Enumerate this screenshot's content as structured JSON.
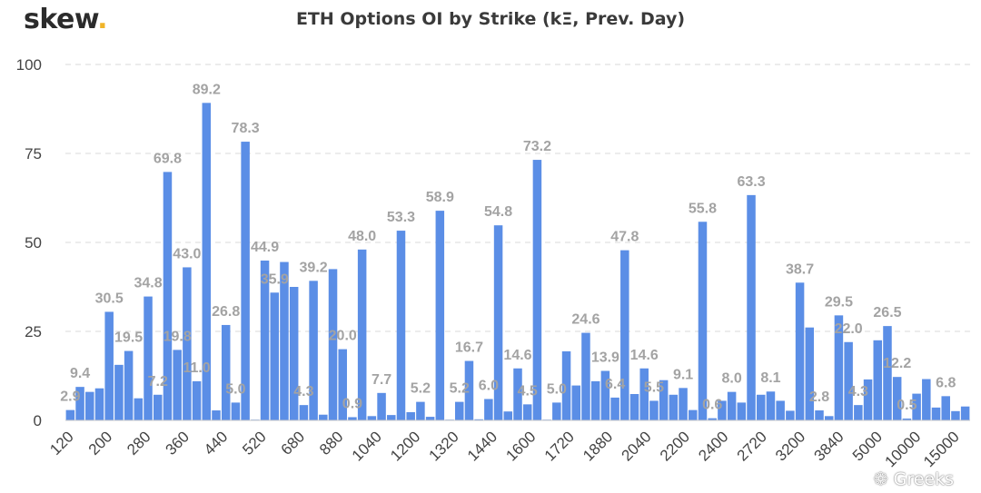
{
  "brand": {
    "name": "skew",
    "dot": "."
  },
  "watermark": {
    "text": "Greeks"
  },
  "chart_data": {
    "type": "bar",
    "title": "ETH Options OI by Strike (kΞ, Prev. Day)",
    "ylim": [
      0,
      100
    ],
    "yticks": [
      0,
      25,
      50,
      75,
      100
    ],
    "grid": true,
    "bar_color": "#5b8ee6",
    "label_color": "#a3a3a3",
    "tick_labels": [
      "120",
      "200",
      "280",
      "360",
      "440",
      "520",
      "680",
      "880",
      "1040",
      "1200",
      "1320",
      "1440",
      "1600",
      "1720",
      "1880",
      "2040",
      "2200",
      "2400",
      "2720",
      "3200",
      "3840",
      "5000",
      "10000",
      "15000"
    ],
    "values": [
      2.9,
      9.4,
      8.0,
      9.0,
      30.5,
      15.6,
      19.5,
      6.2,
      34.8,
      7.2,
      69.8,
      19.8,
      43.0,
      11.0,
      89.2,
      2.8,
      26.8,
      5.0,
      78.3,
      0.2,
      44.9,
      35.9,
      44.5,
      37.5,
      4.3,
      39.2,
      1.6,
      42.5,
      20.0,
      0.9,
      48.0,
      1.2,
      7.7,
      1.5,
      53.3,
      2.3,
      5.2,
      1.0,
      58.9,
      0.2,
      5.2,
      16.7,
      0.3,
      6.0,
      54.8,
      2.5,
      14.6,
      4.5,
      73.2,
      0.2,
      5.0,
      19.4,
      9.8,
      24.6,
      11.0,
      13.9,
      6.4,
      47.8,
      7.4,
      14.6,
      5.5,
      11.3,
      7.2,
      9.1,
      2.9,
      55.8,
      0.6,
      5.5,
      8.0,
      5.0,
      63.3,
      7.2,
      8.1,
      5.5,
      2.7,
      38.7,
      26.1,
      2.8,
      1.2,
      29.5,
      22.0,
      4.3,
      11.5,
      22.5,
      26.5,
      12.2,
      0.5,
      7.5,
      11.6,
      3.6,
      6.8,
      2.6,
      3.9
    ],
    "data_labels": [
      {
        "i": 0,
        "text": "2.9"
      },
      {
        "i": 1,
        "text": "9.4"
      },
      {
        "i": 4,
        "text": "30.5"
      },
      {
        "i": 6,
        "text": "19.5"
      },
      {
        "i": 8,
        "text": "34.8"
      },
      {
        "i": 9,
        "text": "7.2"
      },
      {
        "i": 10,
        "text": "69.8"
      },
      {
        "i": 11,
        "text": "19.8"
      },
      {
        "i": 12,
        "text": "43.0"
      },
      {
        "i": 13,
        "text": "11.0"
      },
      {
        "i": 14,
        "text": "89.2"
      },
      {
        "i": 16,
        "text": "26.8"
      },
      {
        "i": 17,
        "text": "5.0"
      },
      {
        "i": 18,
        "text": "78.3"
      },
      {
        "i": 20,
        "text": "44.9"
      },
      {
        "i": 21,
        "text": "35.9"
      },
      {
        "i": 24,
        "text": "4.3"
      },
      {
        "i": 25,
        "text": "39.2"
      },
      {
        "i": 28,
        "text": "20.0"
      },
      {
        "i": 29,
        "text": "0.9"
      },
      {
        "i": 30,
        "text": "48.0"
      },
      {
        "i": 32,
        "text": "7.7"
      },
      {
        "i": 34,
        "text": "53.3"
      },
      {
        "i": 36,
        "text": "5.2"
      },
      {
        "i": 38,
        "text": "58.9"
      },
      {
        "i": 40,
        "text": "5.2"
      },
      {
        "i": 41,
        "text": "16.7"
      },
      {
        "i": 43,
        "text": "6.0"
      },
      {
        "i": 44,
        "text": "54.8"
      },
      {
        "i": 46,
        "text": "14.6"
      },
      {
        "i": 47,
        "text": "4.5"
      },
      {
        "i": 48,
        "text": "73.2"
      },
      {
        "i": 50,
        "text": "5.0"
      },
      {
        "i": 53,
        "text": "24.6"
      },
      {
        "i": 55,
        "text": "13.9"
      },
      {
        "i": 56,
        "text": "6.4"
      },
      {
        "i": 57,
        "text": "47.8"
      },
      {
        "i": 59,
        "text": "14.6"
      },
      {
        "i": 60,
        "text": "5.5"
      },
      {
        "i": 63,
        "text": "9.1"
      },
      {
        "i": 65,
        "text": "55.8"
      },
      {
        "i": 66,
        "text": "0.6"
      },
      {
        "i": 68,
        "text": "8.0"
      },
      {
        "i": 70,
        "text": "63.3"
      },
      {
        "i": 72,
        "text": "8.1"
      },
      {
        "i": 75,
        "text": "38.7"
      },
      {
        "i": 77,
        "text": "2.8"
      },
      {
        "i": 79,
        "text": "29.5"
      },
      {
        "i": 80,
        "text": "22.0"
      },
      {
        "i": 81,
        "text": "4.3"
      },
      {
        "i": 84,
        "text": "26.5"
      },
      {
        "i": 85,
        "text": "12.2"
      },
      {
        "i": 86,
        "text": "0.5"
      },
      {
        "i": 90,
        "text": "6.8"
      }
    ]
  }
}
